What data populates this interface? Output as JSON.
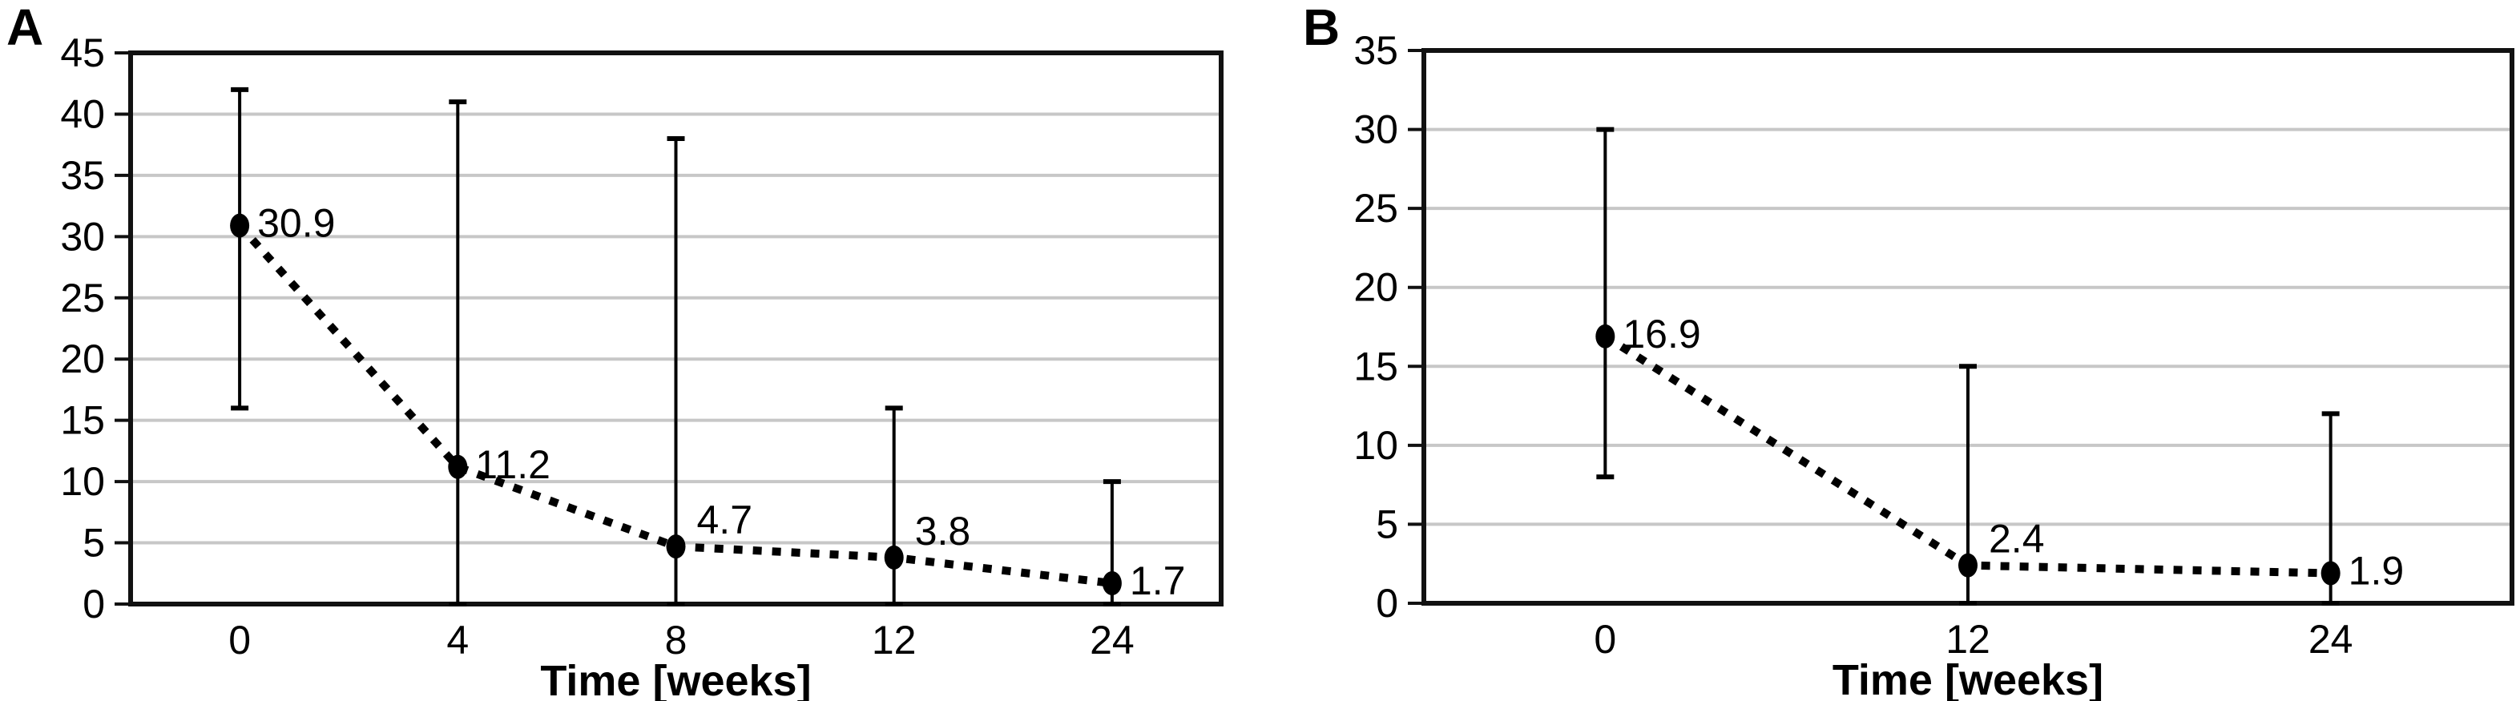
{
  "figure": {
    "background": "#ffffff",
    "panel_count": 2
  },
  "style": {
    "grid_color": "#c7c7c7",
    "axis_color": "#111111",
    "line_color": "#000000",
    "marker_color": "#000000",
    "text_color": "#000000"
  },
  "chart_data": [
    {
      "type": "line",
      "panel_label": "A",
      "title": "",
      "xlabel": "Time [weeks]",
      "ylabel": "",
      "categories": [
        "0",
        "4",
        "8",
        "12",
        "24"
      ],
      "values": [
        30.9,
        11.2,
        4.7,
        3.8,
        1.7
      ],
      "point_labels": [
        "30.9",
        "11.2",
        "4.7",
        "3.8",
        "1.7"
      ],
      "label_positions": [
        "right",
        "right",
        "above-right",
        "above-right",
        "right"
      ],
      "error_upper": [
        42,
        41,
        38,
        16,
        10
      ],
      "error_lower": [
        16,
        0,
        0,
        0,
        0
      ],
      "ylim": [
        0,
        45
      ],
      "yticks": [
        0,
        5,
        10,
        15,
        20,
        25,
        30,
        35,
        40,
        45
      ],
      "grid": true,
      "legend": "none",
      "line_style": "dotted",
      "marker": "filled-ellipse"
    },
    {
      "type": "line",
      "panel_label": "B",
      "title": "",
      "xlabel": "Time [weeks]",
      "ylabel": "",
      "categories": [
        "0",
        "12",
        "24"
      ],
      "values": [
        16.9,
        2.4,
        1.9
      ],
      "point_labels": [
        "16.9",
        "2.4",
        "1.9"
      ],
      "label_positions": [
        "right",
        "above-right",
        "right"
      ],
      "error_upper": [
        30,
        15,
        12
      ],
      "error_lower": [
        8,
        0,
        0
      ],
      "ylim": [
        0,
        35
      ],
      "yticks": [
        0,
        5,
        10,
        15,
        20,
        25,
        30,
        35
      ],
      "grid": true,
      "legend": "none",
      "line_style": "dotted",
      "marker": "filled-ellipse"
    }
  ]
}
